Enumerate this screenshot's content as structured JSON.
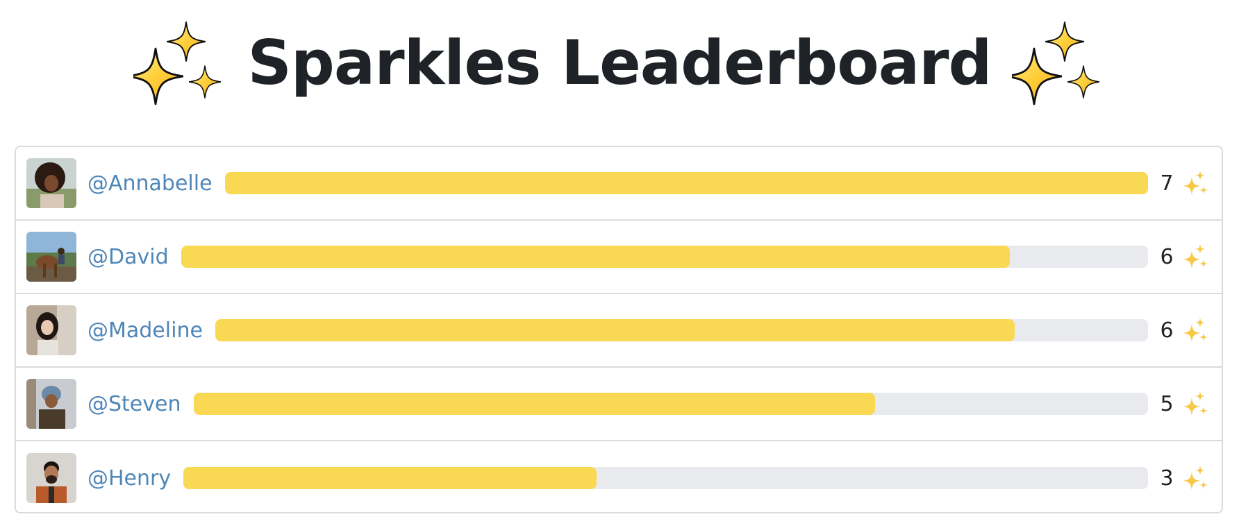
{
  "header": {
    "title": "Sparkles Leaderboard",
    "icon": "sparkles-icon"
  },
  "colors": {
    "bar_fill": "#f9d953",
    "bar_track": "#e9eaee",
    "username": "#4f86b8",
    "title": "#1f2328",
    "border": "#d8dbe0"
  },
  "leaderboard": {
    "max_count": 7,
    "rows": [
      {
        "username": "@Annabelle",
        "count": "7",
        "value": 7,
        "icon": "sparkles-icon"
      },
      {
        "username": "@David",
        "count": "6",
        "value": 6,
        "icon": "sparkles-icon"
      },
      {
        "username": "@Madeline",
        "count": "6",
        "value": 6,
        "icon": "sparkles-icon"
      },
      {
        "username": "@Steven",
        "count": "5",
        "value": 5,
        "icon": "sparkles-icon"
      },
      {
        "username": "@Henry",
        "count": "3",
        "value": 3,
        "icon": "sparkles-icon"
      }
    ]
  }
}
